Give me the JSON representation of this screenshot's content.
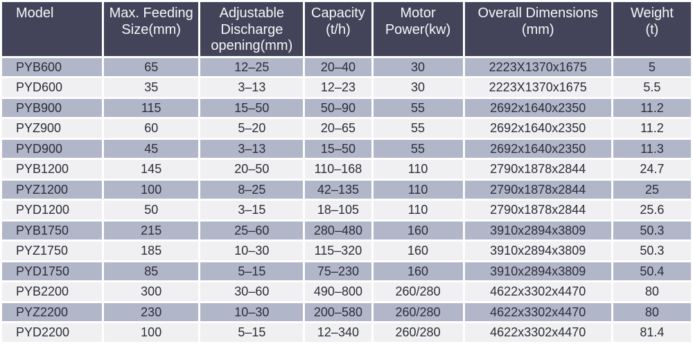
{
  "chart_data": {
    "type": "table",
    "columns": [
      "Model",
      "Max. Feeding\nSize(mm)",
      "Adjustable\nDischarge\nopening(mm)",
      "Capacity\n(t/h)",
      "Motor\nPower(kw)",
      "Overall Dimensions\n(mm)",
      "Weight\n(t)"
    ],
    "column_keys": [
      "model",
      "max-feeding-size",
      "discharge-opening",
      "capacity",
      "motor-power",
      "overall-dimensions",
      "weight"
    ],
    "rows": [
      [
        "PYB600",
        "65",
        "12–25",
        "20–40",
        "30",
        "2223X1370x1675",
        "5"
      ],
      [
        "PYD600",
        "35",
        "3–13",
        "12–23",
        "30",
        "2223X1370x1675",
        "5.5"
      ],
      [
        "PYB900",
        "115",
        "15–50",
        "50–90",
        "55",
        "2692x1640x2350",
        "11.2"
      ],
      [
        "PYZ900",
        "60",
        "5–20",
        "20–65",
        "55",
        "2692x1640x2350",
        "11.2"
      ],
      [
        "PYD900",
        "45",
        "3–13",
        "15–50",
        "55",
        "2692x1640x2350",
        "11.3"
      ],
      [
        "PYB1200",
        "145",
        "20–50",
        "110–168",
        "110",
        "2790x1878x2844",
        "24.7"
      ],
      [
        "PYZ1200",
        "100",
        "8–25",
        "42–135",
        "110",
        "2790x1878x2844",
        "25"
      ],
      [
        "PYD1200",
        "50",
        "3–15",
        "18–105",
        "110",
        "2790x1878x2844",
        "25.6"
      ],
      [
        "PYB1750",
        "215",
        "25–60",
        "280–480",
        "160",
        "3910x2894x3809",
        "50.3"
      ],
      [
        "PYZ1750",
        "185",
        "10–30",
        "115–320",
        "160",
        "3910x2894x3809",
        "50.3"
      ],
      [
        "PYD1750",
        "85",
        "5–15",
        "75–230",
        "160",
        "3910x2894x3809",
        "50.4"
      ],
      [
        "PYB2200",
        "300",
        "30–60",
        "490–800",
        "260/280",
        "4622x3302x4470",
        "80"
      ],
      [
        "PYZ2200",
        "230",
        "10–30",
        "200–580",
        "260/280",
        "4622x3302x4470",
        "80"
      ],
      [
        "PYD2200",
        "100",
        "5–15",
        "12–340",
        "260/280",
        "4622x3302x4470",
        "81.4"
      ]
    ]
  },
  "colors": {
    "header_bg": "#434459",
    "header_text": "#f7f7f9",
    "row_odd_bg": "#b2b6c9",
    "row_even_bg": "#f0eff1",
    "cell_text": "#2c2d38",
    "grid": "#ffffff"
  }
}
